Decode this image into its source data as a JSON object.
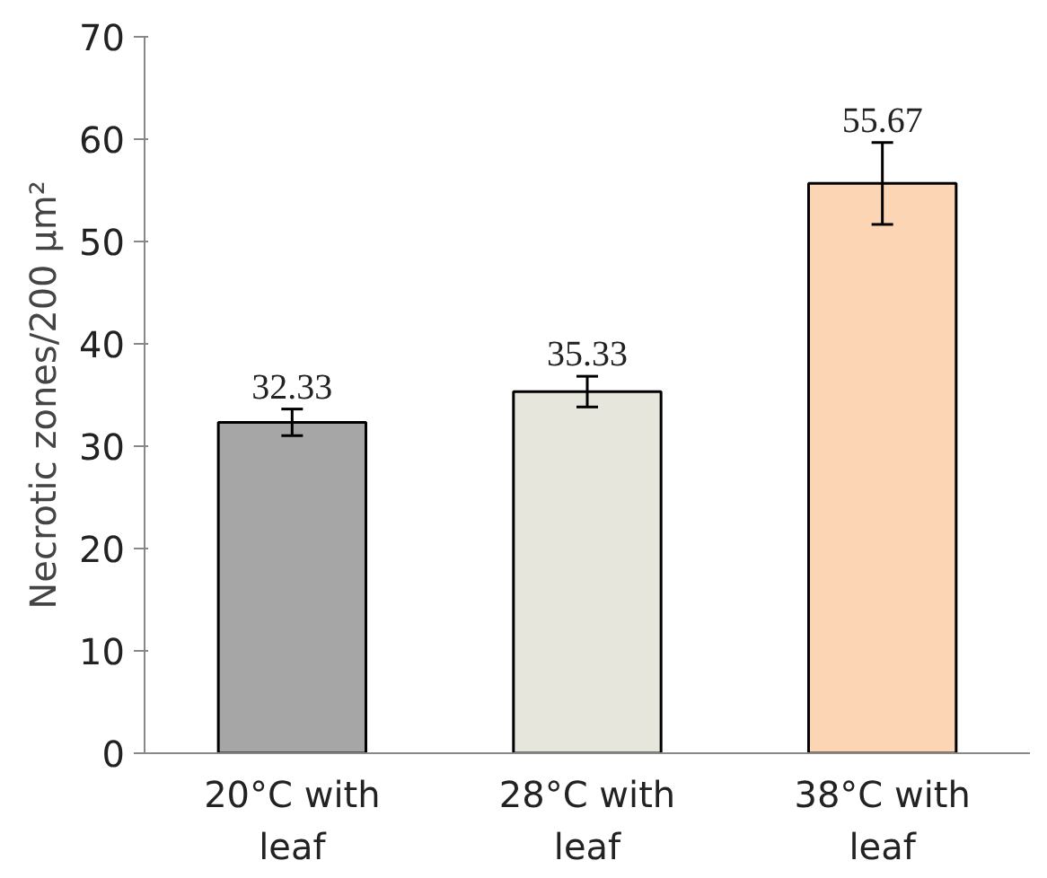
{
  "chart_data": {
    "type": "bar",
    "ylabel": "Necrotic zones/200 µm²",
    "categories": [
      "20°C with\nleaf",
      "28°C with\nleaf",
      "38°C with\nleaf"
    ],
    "values": [
      32.33,
      35.33,
      55.67
    ],
    "errors": [
      1.3,
      1.5,
      4.0
    ],
    "colors": [
      "#a6a6a6",
      "#e6e6dc",
      "#fcd5b5"
    ],
    "data_labels": true,
    "ylim": [
      0,
      70
    ],
    "yticks": [
      0,
      10,
      20,
      30,
      40,
      50,
      60,
      70
    ],
    "grid": false
  }
}
